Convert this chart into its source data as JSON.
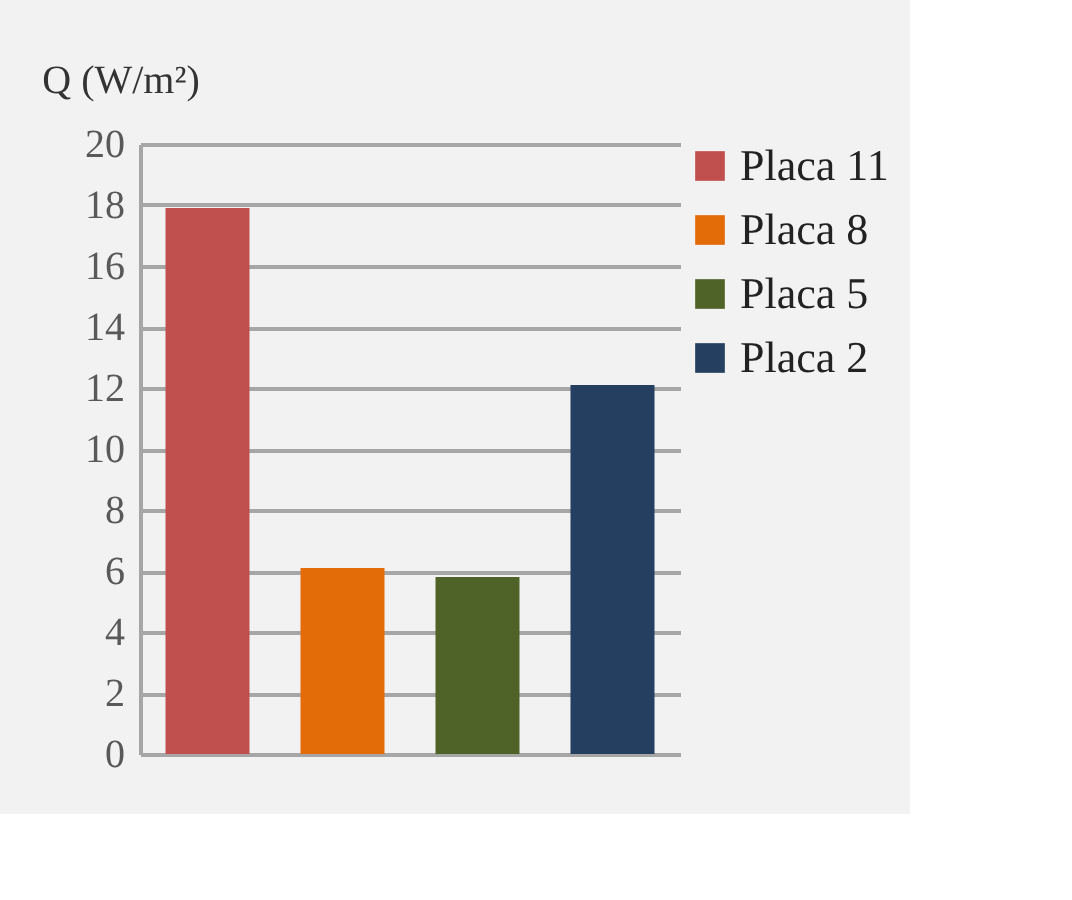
{
  "chart_data": {
    "type": "bar",
    "ylabel": "Q (W/m²)",
    "categories": [
      null,
      null,
      null,
      null
    ],
    "series": [
      {
        "name": "Placa 11",
        "color": "#c0504d",
        "values": [
          17.9,
          null,
          null,
          null
        ]
      },
      {
        "name": "Placa 8",
        "color": "#e36c09",
        "values": [
          null,
          6.1,
          null,
          null
        ]
      },
      {
        "name": "Placa 5",
        "color": "#4f6228",
        "values": [
          null,
          null,
          5.8,
          null
        ]
      },
      {
        "name": "Placa 2",
        "color": "#243f60",
        "values": [
          null,
          null,
          null,
          12.1
        ]
      }
    ],
    "ylim": [
      0,
      20
    ],
    "yticks": [
      0,
      2,
      4,
      6,
      8,
      10,
      12,
      14,
      16,
      18,
      20
    ],
    "grid": "y",
    "legend": "right",
    "tick_labels": "y"
  }
}
